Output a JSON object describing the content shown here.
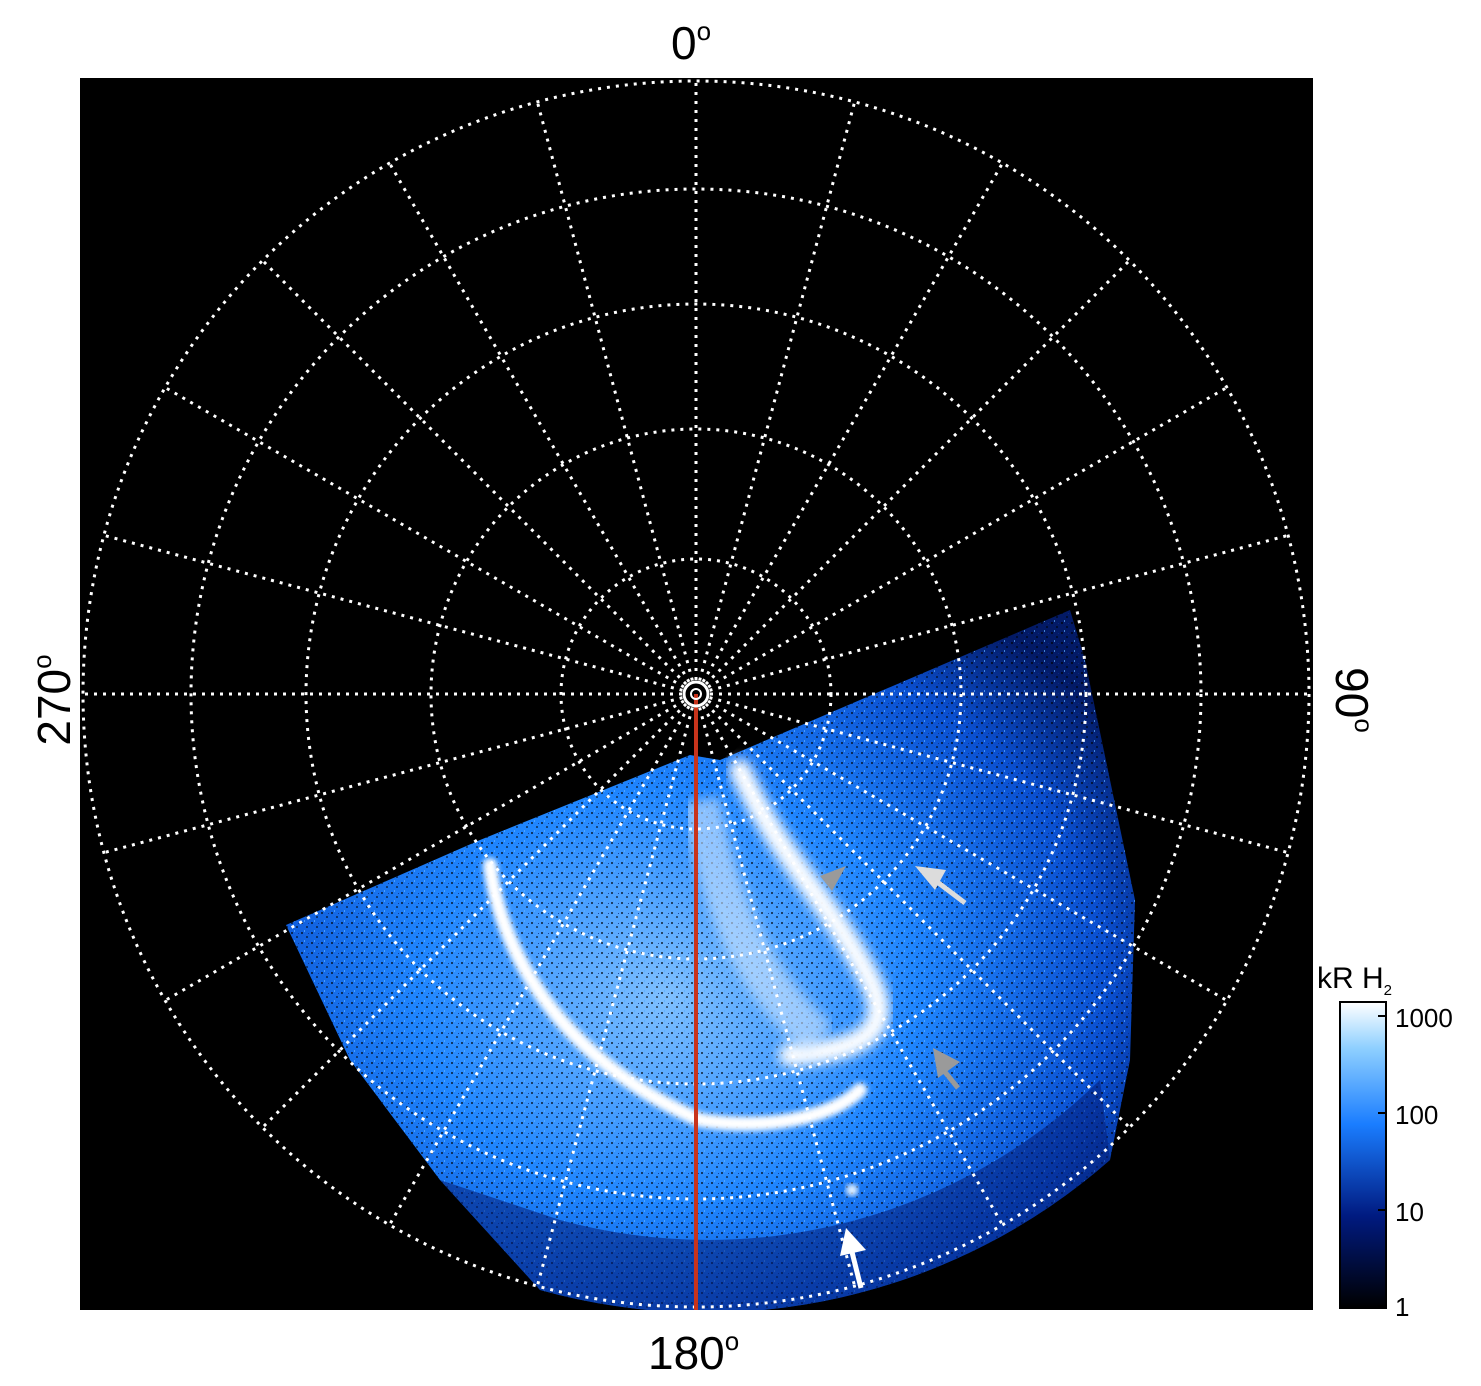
{
  "labels": {
    "top": "0",
    "bottom": "180",
    "left": "270",
    "right": "90",
    "degree": "o"
  },
  "colorbar": {
    "title_main": "kR H",
    "title_sub": "2",
    "ticks": [
      "1000",
      "100",
      "10",
      "1"
    ],
    "scale": "log"
  },
  "colors": {
    "background": "#000000",
    "grid": "#ffffff",
    "meridian_line": "#c8341c",
    "emission_low": "#001a66",
    "emission_mid": "#0a6cff",
    "emission_high": "#ffffff",
    "arrow_white": "#ffffff",
    "arrow_gray": "#9a9a9a"
  },
  "icons": [
    "white-arrow-icon",
    "gray-arrow-icon"
  ]
}
